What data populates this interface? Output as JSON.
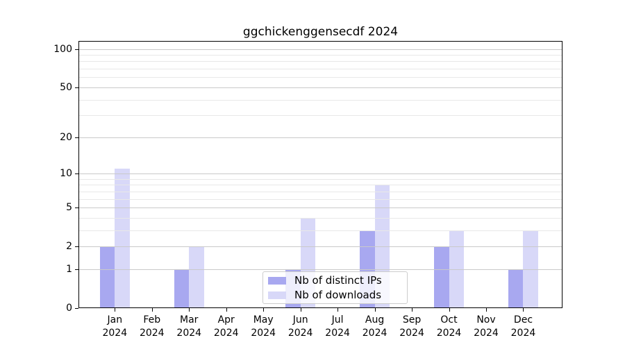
{
  "title": "ggchickenggensecdf 2024",
  "legend": {
    "items": [
      {
        "name": "distinct-ips",
        "label": "Nb of distinct IPs",
        "color": "#a8a8f0"
      },
      {
        "name": "downloads",
        "label": "Nb of downloads",
        "color": "#d8d8f8"
      }
    ]
  },
  "axis": {
    "year": "2024",
    "months": [
      "Jan",
      "Feb",
      "Mar",
      "Apr",
      "May",
      "Jun",
      "Jul",
      "Aug",
      "Sep",
      "Oct",
      "Nov",
      "Dec"
    ],
    "yticks": [
      0,
      1,
      2,
      5,
      10,
      20,
      50,
      100
    ],
    "minor_yticks": [
      3,
      4,
      6,
      7,
      8,
      9,
      30,
      40,
      60,
      70,
      80,
      90
    ]
  },
  "colors": {
    "bar_distinct_ips": "#a8a8f0",
    "bar_downloads": "#d8d8f8",
    "grid_major": "#c9c9c9",
    "grid_minor": "#e8e8e8",
    "spine": "#000000"
  },
  "chart_data": {
    "type": "bar",
    "title": "ggchickenggensecdf 2024",
    "categories": [
      "Jan 2024",
      "Feb 2024",
      "Mar 2024",
      "Apr 2024",
      "May 2024",
      "Jun 2024",
      "Jul 2024",
      "Aug 2024",
      "Sep 2024",
      "Oct 2024",
      "Nov 2024",
      "Dec 2024"
    ],
    "series": [
      {
        "name": "Nb of distinct IPs",
        "color": "#a8a8f0",
        "values": [
          2,
          0,
          1,
          0,
          0,
          1,
          0,
          3,
          0,
          2,
          0,
          1
        ]
      },
      {
        "name": "Nb of downloads",
        "color": "#d8d8f8",
        "values": [
          11,
          0,
          2,
          0,
          0,
          4,
          0,
          8,
          0,
          3,
          0,
          3
        ]
      }
    ],
    "xlabel": "",
    "ylabel": "",
    "yscale": "log1p",
    "yticks": [
      0,
      1,
      2,
      5,
      10,
      20,
      50,
      100
    ],
    "ylim": [
      0,
      115
    ],
    "grid": "horizontal-major-and-minor",
    "legend_position": "lower-center-inside"
  }
}
